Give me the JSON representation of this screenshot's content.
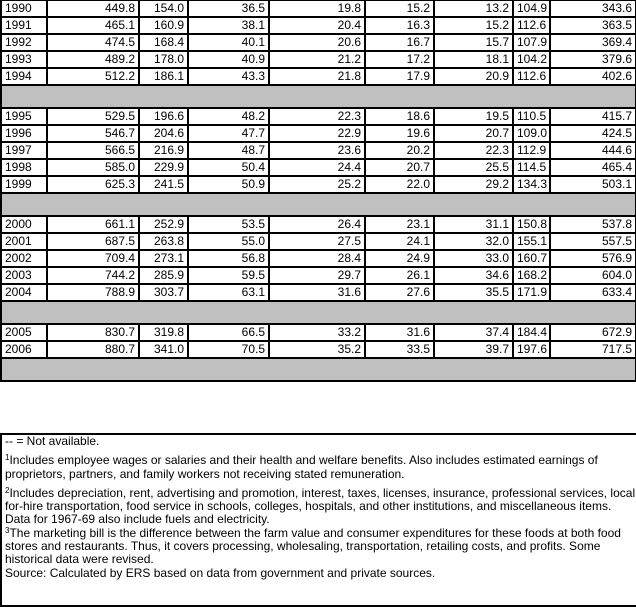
{
  "groups": [
    {
      "rows": [
        [
          "1990",
          "449.8",
          "154.0",
          "36.5",
          "19.8",
          "15.2",
          "13.2",
          "104.9",
          "343.6"
        ],
        [
          "1991",
          "465.1",
          "160.9",
          "38.1",
          "20.4",
          "16.3",
          "15.2",
          "112.6",
          "363.5"
        ],
        [
          "1992",
          "474.5",
          "168.4",
          "40.1",
          "20.6",
          "16.7",
          "15.7",
          "107.9",
          "369.4"
        ],
        [
          "1993",
          "489.2",
          "178.0",
          "40.9",
          "21.2",
          "17.2",
          "18.1",
          "104.2",
          "379.6"
        ],
        [
          "1994",
          "512.2",
          "186.1",
          "43.3",
          "21.8",
          "17.9",
          "20.9",
          "112.6",
          "402.6"
        ]
      ]
    },
    {
      "rows": [
        [
          "1995",
          "529.5",
          "196.6",
          "48.2",
          "22.3",
          "18.6",
          "19.5",
          "110.5",
          "415.7"
        ],
        [
          "1996",
          "546.7",
          "204.6",
          "47.7",
          "22.9",
          "19.6",
          "20.7",
          "109.0",
          "424.5"
        ],
        [
          "1997",
          "566.5",
          "216.9",
          "48.7",
          "23.6",
          "20.2",
          "22.3",
          "112.9",
          "444.6"
        ],
        [
          "1998",
          "585.0",
          "229.9",
          "50.4",
          "24.4",
          "20.7",
          "25.5",
          "114.5",
          "465.4"
        ],
        [
          "1999",
          "625.3",
          "241.5",
          "50.9",
          "25.2",
          "22.0",
          "29.2",
          "134.3",
          "503.1"
        ]
      ]
    },
    {
      "rows": [
        [
          "2000",
          "661.1",
          "252.9",
          "53.5",
          "26.4",
          "23.1",
          "31.1",
          "150.8",
          "537.8"
        ],
        [
          "2001",
          "687.5",
          "263.8",
          "55.0",
          "27.5",
          "24.1",
          "32.0",
          "155.1",
          "557.5"
        ],
        [
          "2002",
          "709.4",
          "273.1",
          "56.8",
          "28.4",
          "24.9",
          "33.0",
          "160.7",
          "576.9"
        ],
        [
          "2003",
          "744.2",
          "285.9",
          "59.5",
          "29.7",
          "26.1",
          "34.6",
          "168.2",
          "604.0"
        ],
        [
          "2004",
          "788.9",
          "303.7",
          "63.1",
          "31.6",
          "27.6",
          "35.5",
          "171.9",
          "633.4"
        ]
      ]
    },
    {
      "rows": [
        [
          "2005",
          "830.7",
          "319.8",
          "66.5",
          "33.2",
          "31.6",
          "37.4",
          "184.4",
          "672.9"
        ],
        [
          "2006",
          "880.7",
          "341.0",
          "70.5",
          "35.2",
          "33.5",
          "39.7",
          "197.6",
          "717.5"
        ]
      ]
    }
  ],
  "notes": {
    "not_available": "-- = Not available.",
    "fn1_mark": "1",
    "fn1": "Includes employee wages or salaries and their health and welfare benefits. Also includes estimated earnings of proprietors, partners, and family workers not receiving stated remuneration.",
    "fn2_mark": "2",
    "fn2": "Includes depreciation, rent, advertising and promotion, interest, taxes, licenses, insurance, professional services, local for-hire transportation, food service in schools, colleges, hospitals, and other institutions, and miscellaneous items. Data for 1967-69 also include fuels and electricity.",
    "fn3_mark": "3",
    "fn3": "The marketing bill is the difference between the farm value and consumer expenditures for these foods at both food stores and restaurants. Thus, it covers processing, wholesaling, transportation, retailing costs, and profits. Some historical data were revised.",
    "source": "Source: Calculated by ERS based on data from government and private sources."
  },
  "colors": {
    "separator": "#c0c0c0",
    "border": "#000000"
  }
}
